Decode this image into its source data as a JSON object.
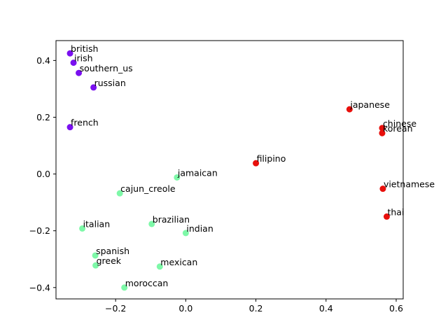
{
  "chart_data": {
    "type": "scatter",
    "title": "",
    "xlabel": "",
    "ylabel": "",
    "xlim": [
      -0.37,
      0.62
    ],
    "ylim": [
      -0.44,
      0.47
    ],
    "grid": false,
    "xticks": [
      {
        "value": -0.2,
        "label": "−0.2"
      },
      {
        "value": 0.0,
        "label": "0.0"
      },
      {
        "value": 0.2,
        "label": "0.2"
      },
      {
        "value": 0.4,
        "label": "0.4"
      },
      {
        "value": 0.6,
        "label": "0.6"
      }
    ],
    "yticks": [
      {
        "value": -0.4,
        "label": "−0.4"
      },
      {
        "value": -0.2,
        "label": "−0.2"
      },
      {
        "value": 0.0,
        "label": "0.0"
      },
      {
        "value": 0.2,
        "label": "0.2"
      },
      {
        "value": 0.4,
        "label": "0.4"
      }
    ],
    "colors": {
      "purple": "#7a10f0",
      "red": "#e8100c",
      "green": "#7ef8a8"
    },
    "points": [
      {
        "label": "british",
        "x": -0.33,
        "y": 0.425,
        "color": "purple"
      },
      {
        "label": "irish",
        "x": -0.32,
        "y": 0.392,
        "color": "purple"
      },
      {
        "label": "southern_us",
        "x": -0.305,
        "y": 0.356,
        "color": "purple"
      },
      {
        "label": "russian",
        "x": -0.263,
        "y": 0.305,
        "color": "purple"
      },
      {
        "label": "french",
        "x": -0.33,
        "y": 0.165,
        "color": "purple"
      },
      {
        "label": "japanese",
        "x": 0.467,
        "y": 0.228,
        "color": "red"
      },
      {
        "label": "chinese",
        "x": 0.56,
        "y": 0.162,
        "color": "red"
      },
      {
        "label": "korean",
        "x": 0.56,
        "y": 0.144,
        "color": "red"
      },
      {
        "label": "filipino",
        "x": 0.2,
        "y": 0.038,
        "color": "red"
      },
      {
        "label": "vietnamese",
        "x": 0.562,
        "y": -0.052,
        "color": "red"
      },
      {
        "label": "thai",
        "x": 0.573,
        "y": -0.15,
        "color": "red"
      },
      {
        "label": "jamaican",
        "x": -0.025,
        "y": -0.012,
        "color": "green"
      },
      {
        "label": "cajun_creole",
        "x": -0.188,
        "y": -0.068,
        "color": "green"
      },
      {
        "label": "italian",
        "x": -0.295,
        "y": -0.192,
        "color": "green"
      },
      {
        "label": "brazilian",
        "x": -0.097,
        "y": -0.176,
        "color": "green"
      },
      {
        "label": "indian",
        "x": 0.0,
        "y": -0.208,
        "color": "green"
      },
      {
        "label": "spanish",
        "x": -0.258,
        "y": -0.287,
        "color": "green"
      },
      {
        "label": "greek",
        "x": -0.257,
        "y": -0.322,
        "color": "green"
      },
      {
        "label": "mexican",
        "x": -0.074,
        "y": -0.326,
        "color": "green"
      },
      {
        "label": "moroccan",
        "x": -0.175,
        "y": -0.4,
        "color": "green"
      }
    ]
  }
}
